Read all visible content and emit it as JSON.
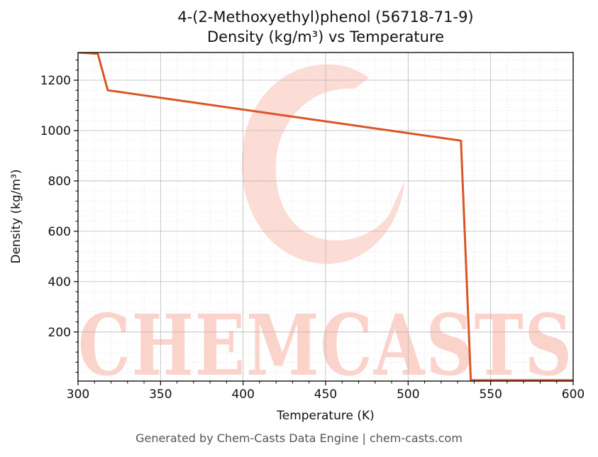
{
  "chart_data": {
    "type": "line",
    "title": "4-(2-Methoxyethyl)phenol (56718-71-9)",
    "subtitle": "Density (kg/m³) vs Temperature",
    "xlabel": "Temperature (K)",
    "ylabel": "Density (kg/m³)",
    "xlim": [
      300,
      600
    ],
    "ylim": [
      5,
      1310
    ],
    "xticks": [
      300,
      350,
      400,
      450,
      500,
      550,
      600
    ],
    "yticks": [
      200,
      400,
      600,
      800,
      1000,
      1200
    ],
    "grid": true,
    "series": [
      {
        "color": "#d95526",
        "x": [
          300,
          312,
          318,
          532,
          538,
          600
        ],
        "y": [
          1310,
          1305,
          1160,
          960,
          8,
          8
        ]
      }
    ]
  },
  "watermark": {
    "text": "CHEMCASTS",
    "color": "#fbd3ca"
  },
  "footer": "Generated by Chem-Casts Data Engine | chem-casts.com"
}
